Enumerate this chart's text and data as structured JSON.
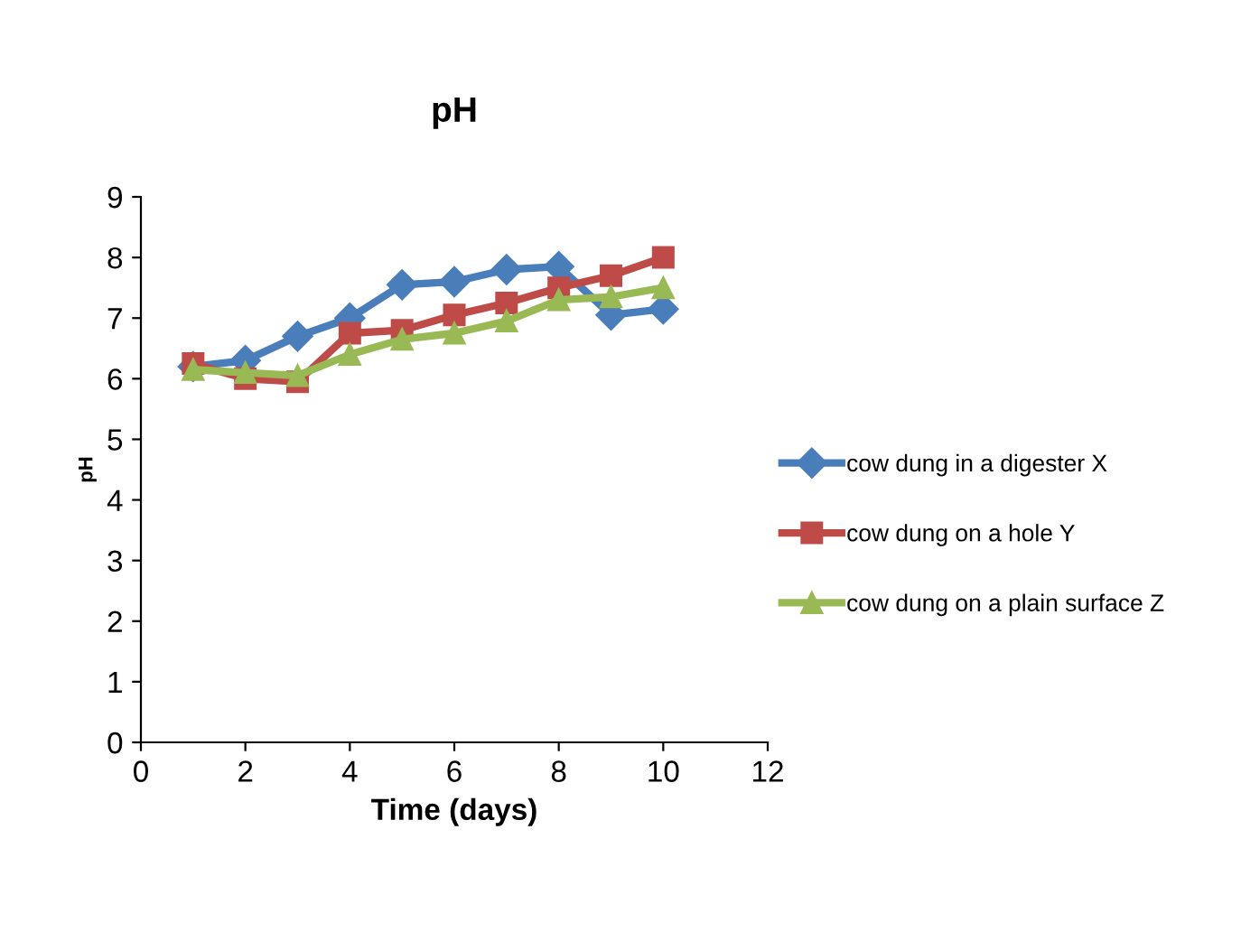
{
  "chart_data": {
    "type": "line",
    "title": "pH",
    "xlabel": "Time (days)",
    "ylabel": "pH",
    "x": [
      1,
      2,
      3,
      4,
      5,
      6,
      7,
      8,
      9,
      10
    ],
    "series": [
      {
        "name": "cow dung in a digester X",
        "color": "#4a7ebb",
        "marker": "diamond",
        "values": [
          6.2,
          6.3,
          6.7,
          7.0,
          7.55,
          7.6,
          7.8,
          7.85,
          7.05,
          7.15
        ]
      },
      {
        "name": "cow dung on a hole Y",
        "color": "#be4b48",
        "marker": "square",
        "values": [
          6.25,
          6.0,
          5.95,
          6.75,
          6.8,
          7.05,
          7.25,
          7.5,
          7.7,
          8.0
        ]
      },
      {
        "name": "cow dung on a plain surface Z",
        "color": "#98b954",
        "marker": "triangle",
        "values": [
          6.15,
          6.1,
          6.05,
          6.4,
          6.65,
          6.75,
          6.95,
          7.3,
          7.35,
          7.5
        ]
      }
    ],
    "xlim": [
      0,
      12
    ],
    "xticks": [
      0,
      2,
      4,
      6,
      8,
      10,
      12
    ],
    "ylim": [
      0,
      9
    ],
    "yticks": [
      0,
      1,
      2,
      3,
      4,
      5,
      6,
      7,
      8,
      9
    ],
    "grid": false,
    "legend": "right",
    "line_style": "solid"
  }
}
